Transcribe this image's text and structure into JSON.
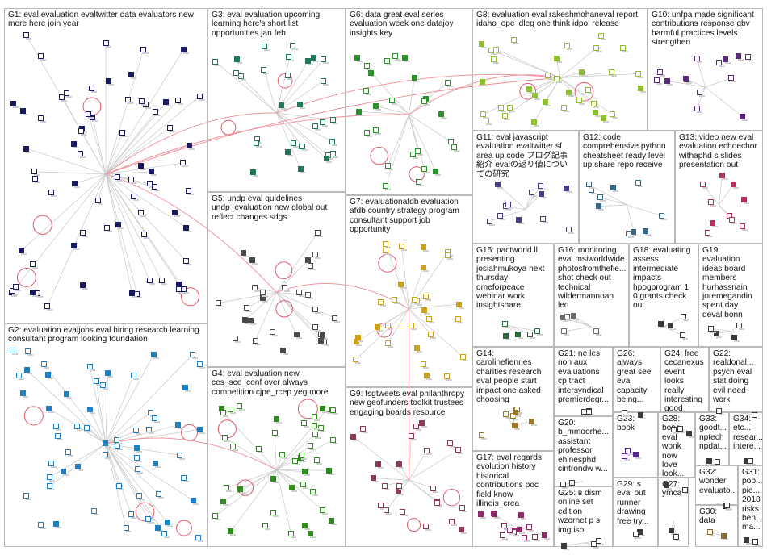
{
  "graph": {
    "groups": [
      {
        "id": "G1",
        "label": "G1: eval evaluation evaltwitter data evaluators new more here join year",
        "color": "#1a1a5e",
        "nodes": 70
      },
      {
        "id": "G2",
        "label": "G2: evaluation evaljobs eval hiring research learning consultant program looking foundation",
        "color": "#1f7fbf",
        "nodes": 60
      },
      {
        "id": "G3",
        "label": "G3: eval evaluation upcoming learning here's short list opportunities jan feb",
        "color": "#1e7a55",
        "nodes": 30
      },
      {
        "id": "G4",
        "label": "G4: eval evaluation new ces_sce_conf over always competition cjpe_rcep yeg more",
        "color": "#2e8b1e",
        "nodes": 42
      },
      {
        "id": "G5",
        "label": "G5: undp eval guidelines undp_evaluation new global out reflect changes sdgs",
        "color": "#4a4a4a",
        "nodes": 28
      },
      {
        "id": "G6",
        "label": "G6: data great eval series evaluation week one datajoy insights key",
        "color": "#2f8f2f",
        "nodes": 26
      },
      {
        "id": "G7",
        "label": "G7: evaluationafdb evaluation afdb country strategy program consultant support job opportunity",
        "color": "#c9a21a",
        "nodes": 30
      },
      {
        "id": "G8",
        "label": "G8: evaluation eval rakeshmohaneval report idaho_ope idleg one think idpol release",
        "color": "#8fbf2f",
        "nodes": 34
      },
      {
        "id": "G9",
        "label": "G9: fsgtweets eval philanthropy new geofunders toolkit trustees engaging boards resource",
        "color": "#8b3a5a",
        "nodes": 24
      },
      {
        "id": "G10",
        "label": "G10: unfpa made significant contributions response gbv harmful practices levels strengthen",
        "color": "#5a2a7a",
        "nodes": 14
      },
      {
        "id": "G11",
        "label": "G11: eval javascript evaluation evaltwitter sf area up code プログ記事 紹介 evalの返り値についての研究",
        "color": "#4a3a8a",
        "nodes": 12
      },
      {
        "id": "G12",
        "label": "G12: code comprehensive python cheatsheet ready level up share repo receive",
        "color": "#3a6a8a",
        "nodes": 10
      },
      {
        "id": "G13",
        "label": "G13: video new eval evaluation echoechor withaphd s slides presentation out",
        "color": "#b03060",
        "nodes": 10
      },
      {
        "id": "G14",
        "label": "G14: carolinefiennes charities research eval people start impact one asked choosing",
        "color": "#9a7a2a",
        "nodes": 8
      },
      {
        "id": "G15",
        "label": "G15: pactworld ll presenting josiahmukoya next thursday dmeforpeace webinar work insightshare",
        "color": "#2a6a3a",
        "nodes": 5
      },
      {
        "id": "G16",
        "label": "G16: monitoring eval msiworldwide photosfromthefie... shot check out technical wildermannoah led",
        "color": "#6a6a6a",
        "nodes": 5
      },
      {
        "id": "G17",
        "label": "G17: eval regards evolution history historical contributions poc field know illinois_crea",
        "color": "#8a2a6a",
        "nodes": 14
      },
      {
        "id": "G18",
        "label": "G18: evaluating assess intermediate impacts hpogprogram 1 0 grants check out",
        "color": "#3a3a3a",
        "nodes": 4
      },
      {
        "id": "G19",
        "label": "G19: evaluation ideas board members hurhassnain joremegandin spent day deval bonn",
        "color": "#3a3a3a",
        "nodes": 4
      },
      {
        "id": "G20",
        "label": "G20: b_mmoorhe... assistant professor ehinesphd cintrondw w...",
        "color": "#3a3a3a",
        "nodes": 3
      },
      {
        "id": "G21",
        "label": "G21: ne les non aux evaluations cp tract intersyndical premierdegr...",
        "color": "#3a3a3a",
        "nodes": 3
      },
      {
        "id": "G22",
        "label": "G22: realdonal... psych eval stat doing evil need work",
        "color": "#3a3a3a",
        "nodes": 3
      },
      {
        "id": "G23",
        "label": "G23: book",
        "color": "#5a2a8a",
        "nodes": 3
      },
      {
        "id": "G24",
        "label": "G24: free cecanexus event looks really interesting good data...",
        "color": "#3a3a3a",
        "nodes": 3
      },
      {
        "id": "G25",
        "label": "G25: в dism online set edition wzornet p s img iso",
        "color": "#3a3a3a",
        "nodes": 3
      },
      {
        "id": "G26",
        "label": "G26: always great see eval capacity being...",
        "color": "#3a3a3a",
        "nodes": 2
      },
      {
        "id": "G27",
        "label": "G27: ymca",
        "color": "#3a3a3a",
        "nodes": 2
      },
      {
        "id": "G28",
        "label": "G28: bono eval wonk now love look...",
        "color": "#3a3a3a",
        "nodes": 2
      },
      {
        "id": "G29",
        "label": "G29: s eval out runner drawing free try...",
        "color": "#3a3a3a",
        "nodes": 2
      },
      {
        "id": "G30",
        "label": "G30: data",
        "color": "#8a6a2a",
        "nodes": 2
      },
      {
        "id": "G31",
        "label": "G31: pop... pie... 2018 risks ben... ma...",
        "color": "#3a3a3a",
        "nodes": 2
      },
      {
        "id": "G32",
        "label": "G32: wonder evaluato...",
        "color": "#3a3a3a",
        "nodes": 2
      },
      {
        "id": "G33",
        "label": "G33: goodt... nptech npdat...",
        "color": "#3a3a3a",
        "nodes": 2
      },
      {
        "id": "G34",
        "label": "G34: etc... resear... intere...",
        "color": "#3a3a3a",
        "nodes": 2
      }
    ]
  }
}
